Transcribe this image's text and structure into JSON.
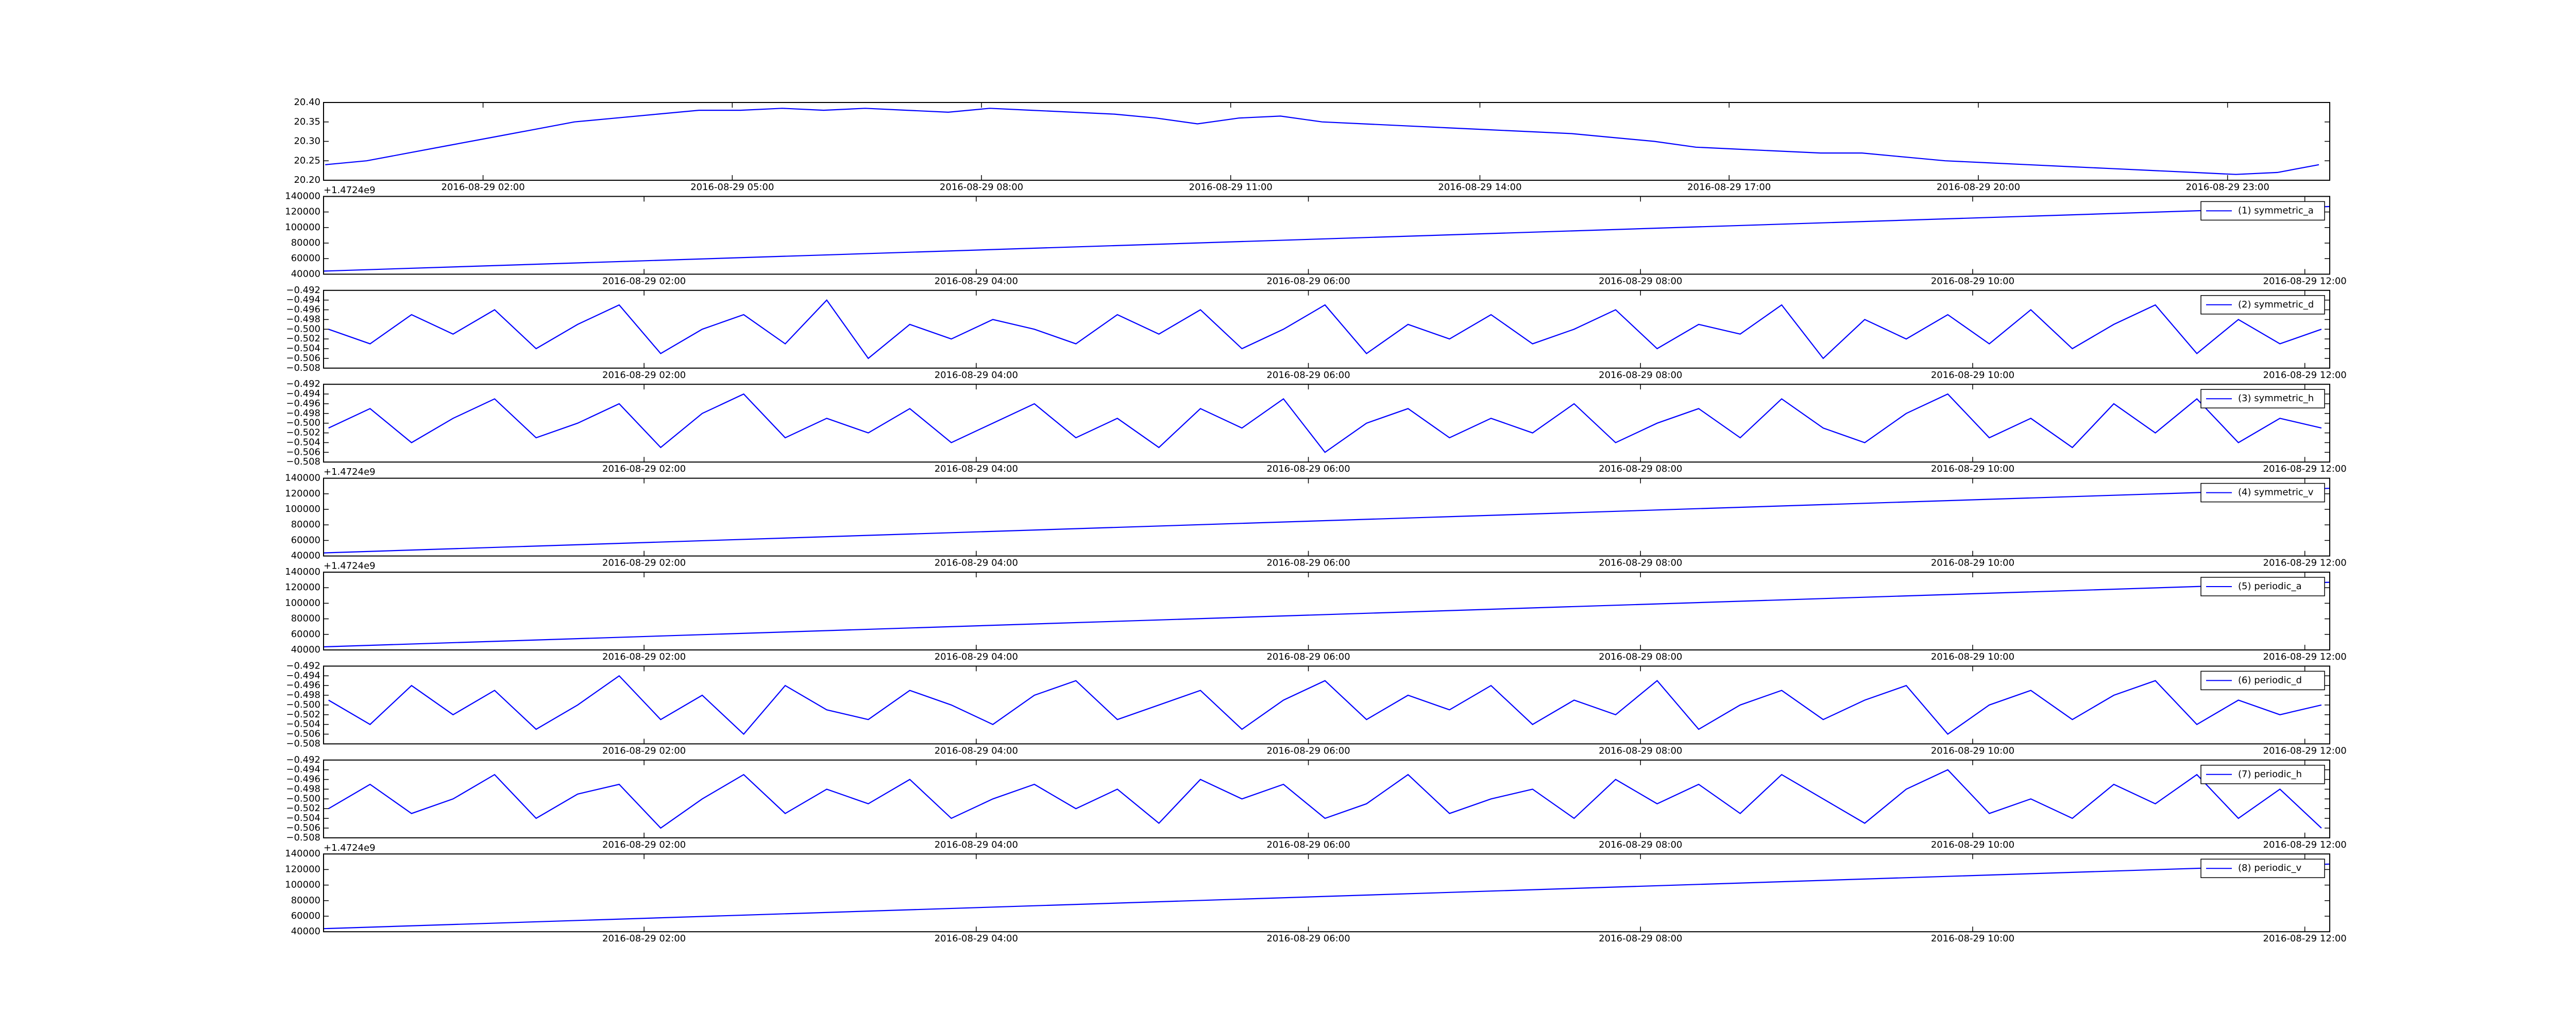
{
  "chart_data": [
    {
      "type": "line",
      "x_offset_text": "+1.4724e9",
      "x": [
        0.1,
        0.6,
        1.1,
        1.6,
        2.1,
        2.6,
        3.1,
        3.6,
        4.1,
        4.6,
        5.1,
        5.6,
        6.1,
        6.6,
        7.1,
        7.6,
        8.1,
        8.6,
        9.1,
        9.6,
        10.1,
        10.6,
        11.1,
        11.6,
        12.1,
        12.6,
        13.1,
        13.6,
        14.1,
        14.6,
        15.1,
        15.6,
        16.1,
        16.6,
        17.1,
        17.6,
        18.1,
        18.6,
        19.1,
        19.6,
        20.1,
        20.6,
        21.1,
        21.6,
        22.1,
        22.6,
        23.1,
        23.6,
        24.1
      ],
      "values": [
        20.24,
        20.25,
        20.27,
        20.29,
        20.31,
        20.33,
        20.35,
        20.36,
        20.37,
        20.38,
        20.38,
        20.385,
        20.38,
        20.385,
        20.38,
        20.375,
        20.385,
        20.38,
        20.375,
        20.37,
        20.36,
        20.345,
        20.36,
        20.365,
        20.35,
        20.345,
        20.34,
        20.335,
        20.33,
        20.325,
        20.32,
        20.31,
        20.3,
        20.285,
        20.28,
        20.275,
        20.27,
        20.27,
        20.26,
        20.25,
        20.245,
        20.24,
        20.235,
        20.23,
        20.225,
        20.22,
        20.215,
        20.22,
        20.24
      ],
      "color": "#0000ff",
      "xlim": [
        0.08,
        24.23
      ],
      "ylim": [
        20.2,
        20.4
      ],
      "xticks": [
        {
          "value": 2,
          "label": "2016-08-29 02:00"
        },
        {
          "value": 5,
          "label": "2016-08-29 05:00"
        },
        {
          "value": 8,
          "label": "2016-08-29 08:00"
        },
        {
          "value": 11,
          "label": "2016-08-29 11:00"
        },
        {
          "value": 14,
          "label": "2016-08-29 14:00"
        },
        {
          "value": 17,
          "label": "2016-08-29 17:00"
        },
        {
          "value": 20,
          "label": "2016-08-29 20:00"
        },
        {
          "value": 23,
          "label": "2016-08-29 23:00"
        }
      ],
      "yticks": [
        {
          "value": 20.2,
          "label": "20.20"
        },
        20.25,
        {
          "value": 20.3,
          "label": "20.30"
        },
        20.35,
        {
          "value": 20.4,
          "label": "20.40"
        }
      ]
    },
    {
      "type": "line",
      "x": [
        0.07,
        12.15
      ],
      "series": [
        {
          "name": "(1) symmetric_a",
          "color": "#0000ff",
          "values": [
            44000,
            127000
          ]
        }
      ],
      "xlim": [
        0.07,
        12.15
      ],
      "ylim": [
        40000,
        140000
      ],
      "xticks": [
        {
          "value": 2,
          "label": "2016-08-29 02:00"
        },
        {
          "value": 4,
          "label": "2016-08-29 04:00"
        },
        {
          "value": 6,
          "label": "2016-08-29 06:00"
        },
        {
          "value": 8,
          "label": "2016-08-29 08:00"
        },
        {
          "value": 10,
          "label": "2016-08-29 10:00"
        },
        {
          "value": 12,
          "label": "2016-08-29 12:00"
        }
      ],
      "yticks": [
        40000,
        60000,
        80000,
        100000,
        120000,
        140000
      ]
    },
    {
      "type": "line",
      "x": [
        0.1,
        0.35,
        0.6,
        0.85,
        1.1,
        1.35,
        1.6,
        1.85,
        2.1,
        2.35,
        2.6,
        2.85,
        3.1,
        3.35,
        3.6,
        3.85,
        4.1,
        4.35,
        4.6,
        4.85,
        5.1,
        5.35,
        5.6,
        5.85,
        6.1,
        6.35,
        6.6,
        6.85,
        7.1,
        7.35,
        7.6,
        7.85,
        8.1,
        8.35,
        8.6,
        8.85,
        9.1,
        9.35,
        9.6,
        9.85,
        10.1,
        10.35,
        10.6,
        10.85,
        11.1,
        11.35,
        11.6,
        11.85,
        12.1
      ],
      "series": [
        {
          "name": "(2) symmetric_d",
          "color": "#0000ff",
          "values": [
            -0.5,
            -0.503,
            -0.497,
            -0.501,
            -0.496,
            -0.504,
            -0.499,
            -0.495,
            -0.505,
            -0.5,
            -0.497,
            -0.503,
            -0.494,
            -0.506,
            -0.499,
            -0.502,
            -0.498,
            -0.5,
            -0.503,
            -0.497,
            -0.501,
            -0.496,
            -0.504,
            -0.5,
            -0.495,
            -0.505,
            -0.499,
            -0.502,
            -0.497,
            -0.503,
            -0.5,
            -0.496,
            -0.504,
            -0.499,
            -0.501,
            -0.495,
            -0.506,
            -0.498,
            -0.502,
            -0.497,
            -0.503,
            -0.496,
            -0.504,
            -0.499,
            -0.495,
            -0.505,
            -0.498,
            -0.503,
            -0.5
          ]
        }
      ],
      "xlim": [
        0.07,
        12.15
      ],
      "ylim": [
        -0.508,
        -0.492
      ],
      "xticks": [
        {
          "value": 2,
          "label": "2016-08-29 02:00"
        },
        {
          "value": 4,
          "label": "2016-08-29 04:00"
        },
        {
          "value": 6,
          "label": "2016-08-29 06:00"
        },
        {
          "value": 8,
          "label": "2016-08-29 08:00"
        },
        {
          "value": 10,
          "label": "2016-08-29 10:00"
        },
        {
          "value": 12,
          "label": "2016-08-29 12:00"
        }
      ],
      "yticks": [
        {
          "value": -0.508,
          "label": "−0.508"
        },
        {
          "value": -0.506,
          "label": "−0.506"
        },
        {
          "value": -0.504,
          "label": "−0.504"
        },
        {
          "value": -0.502,
          "label": "−0.502"
        },
        {
          "value": -0.5,
          "label": "−0.500"
        },
        {
          "value": -0.498,
          "label": "−0.498"
        },
        {
          "value": -0.496,
          "label": "−0.496"
        },
        {
          "value": -0.494,
          "label": "−0.494"
        },
        {
          "value": -0.492,
          "label": "−0.492"
        }
      ]
    },
    {
      "type": "line",
      "x_offset_text": "+1.4724e9",
      "x": [
        0.1,
        0.35,
        0.6,
        0.85,
        1.1,
        1.35,
        1.6,
        1.85,
        2.1,
        2.35,
        2.6,
        2.85,
        3.1,
        3.35,
        3.6,
        3.85,
        4.1,
        4.35,
        4.6,
        4.85,
        5.1,
        5.35,
        5.6,
        5.85,
        6.1,
        6.35,
        6.6,
        6.85,
        7.1,
        7.35,
        7.6,
        7.85,
        8.1,
        8.35,
        8.6,
        8.85,
        9.1,
        9.35,
        9.6,
        9.85,
        10.1,
        10.35,
        10.6,
        10.85,
        11.1,
        11.35,
        11.6,
        11.85,
        12.1
      ],
      "series": [
        {
          "name": "(3) symmetric_h",
          "color": "#0000ff",
          "values": [
            -0.501,
            -0.497,
            -0.504,
            -0.499,
            -0.495,
            -0.503,
            -0.5,
            -0.496,
            -0.505,
            -0.498,
            -0.494,
            -0.503,
            -0.499,
            -0.502,
            -0.497,
            -0.504,
            -0.5,
            -0.496,
            -0.503,
            -0.499,
            -0.505,
            -0.497,
            -0.501,
            -0.495,
            -0.506,
            -0.5,
            -0.497,
            -0.503,
            -0.499,
            -0.502,
            -0.496,
            -0.504,
            -0.5,
            -0.497,
            -0.503,
            -0.495,
            -0.501,
            -0.504,
            -0.498,
            -0.494,
            -0.503,
            -0.499,
            -0.505,
            -0.496,
            -0.502,
            -0.495,
            -0.504,
            -0.499,
            -0.501
          ]
        }
      ],
      "xlim": [
        0.07,
        12.15
      ],
      "ylim": [
        -0.508,
        -0.492
      ],
      "xticks": [
        {
          "value": 2,
          "label": "2016-08-29 02:00"
        },
        {
          "value": 4,
          "label": "2016-08-29 04:00"
        },
        {
          "value": 6,
          "label": "2016-08-29 06:00"
        },
        {
          "value": 8,
          "label": "2016-08-29 08:00"
        },
        {
          "value": 10,
          "label": "2016-08-29 10:00"
        },
        {
          "value": 12,
          "label": "2016-08-29 12:00"
        }
      ],
      "yticks": [
        {
          "value": -0.508,
          "label": "−0.508"
        },
        {
          "value": -0.506,
          "label": "−0.506"
        },
        {
          "value": -0.504,
          "label": "−0.504"
        },
        {
          "value": -0.502,
          "label": "−0.502"
        },
        {
          "value": -0.5,
          "label": "−0.500"
        },
        {
          "value": -0.498,
          "label": "−0.498"
        },
        {
          "value": -0.496,
          "label": "−0.496"
        },
        {
          "value": -0.494,
          "label": "−0.494"
        },
        {
          "value": -0.492,
          "label": "−0.492"
        }
      ]
    },
    {
      "type": "line",
      "x_offset_text": "+1.4724e9",
      "x": [
        0.07,
        12.15
      ],
      "series": [
        {
          "name": "(4) symmetric_v",
          "color": "#0000ff",
          "values": [
            44000,
            127000
          ]
        }
      ],
      "xlim": [
        0.07,
        12.15
      ],
      "ylim": [
        40000,
        140000
      ],
      "xticks": [
        {
          "value": 2,
          "label": "2016-08-29 02:00"
        },
        {
          "value": 4,
          "label": "2016-08-29 04:00"
        },
        {
          "value": 6,
          "label": "2016-08-29 06:00"
        },
        {
          "value": 8,
          "label": "2016-08-29 08:00"
        },
        {
          "value": 10,
          "label": "2016-08-29 10:00"
        },
        {
          "value": 12,
          "label": "2016-08-29 12:00"
        }
      ],
      "yticks": [
        40000,
        60000,
        80000,
        100000,
        120000,
        140000
      ]
    },
    {
      "type": "line",
      "x": [
        0.07,
        12.15
      ],
      "series": [
        {
          "name": "(5) periodic_a",
          "color": "#0000ff",
          "values": [
            44000,
            127000
          ]
        }
      ],
      "xlim": [
        0.07,
        12.15
      ],
      "ylim": [
        40000,
        140000
      ],
      "xticks": [
        {
          "value": 2,
          "label": "2016-08-29 02:00"
        },
        {
          "value": 4,
          "label": "2016-08-29 04:00"
        },
        {
          "value": 6,
          "label": "2016-08-29 06:00"
        },
        {
          "value": 8,
          "label": "2016-08-29 08:00"
        },
        {
          "value": 10,
          "label": "2016-08-29 10:00"
        },
        {
          "value": 12,
          "label": "2016-08-29 12:00"
        }
      ],
      "yticks": [
        40000,
        60000,
        80000,
        100000,
        120000,
        140000
      ]
    },
    {
      "type": "line",
      "x": [
        0.1,
        0.35,
        0.6,
        0.85,
        1.1,
        1.35,
        1.6,
        1.85,
        2.1,
        2.35,
        2.6,
        2.85,
        3.1,
        3.35,
        3.6,
        3.85,
        4.1,
        4.35,
        4.6,
        4.85,
        5.1,
        5.35,
        5.6,
        5.85,
        6.1,
        6.35,
        6.6,
        6.85,
        7.1,
        7.35,
        7.6,
        7.85,
        8.1,
        8.35,
        8.6,
        8.85,
        9.1,
        9.35,
        9.6,
        9.85,
        10.1,
        10.35,
        10.6,
        10.85,
        11.1,
        11.35,
        11.6,
        11.85,
        12.1
      ],
      "series": [
        {
          "name": "(6) periodic_d",
          "color": "#0000ff",
          "values": [
            -0.499,
            -0.504,
            -0.496,
            -0.502,
            -0.497,
            -0.505,
            -0.5,
            -0.494,
            -0.503,
            -0.498,
            -0.506,
            -0.496,
            -0.501,
            -0.503,
            -0.497,
            -0.5,
            -0.504,
            -0.498,
            -0.495,
            -0.503,
            -0.5,
            -0.497,
            -0.505,
            -0.499,
            -0.495,
            -0.503,
            -0.498,
            -0.501,
            -0.496,
            -0.504,
            -0.499,
            -0.502,
            -0.495,
            -0.505,
            -0.5,
            -0.497,
            -0.503,
            -0.499,
            -0.496,
            -0.506,
            -0.5,
            -0.497,
            -0.503,
            -0.498,
            -0.495,
            -0.504,
            -0.499,
            -0.502,
            -0.5
          ]
        }
      ],
      "xlim": [
        0.07,
        12.15
      ],
      "ylim": [
        -0.508,
        -0.492
      ],
      "xticks": [
        {
          "value": 2,
          "label": "2016-08-29 02:00"
        },
        {
          "value": 4,
          "label": "2016-08-29 04:00"
        },
        {
          "value": 6,
          "label": "2016-08-29 06:00"
        },
        {
          "value": 8,
          "label": "2016-08-29 08:00"
        },
        {
          "value": 10,
          "label": "2016-08-29 10:00"
        },
        {
          "value": 12,
          "label": "2016-08-29 12:00"
        }
      ],
      "yticks": [
        {
          "value": -0.508,
          "label": "−0.508"
        },
        {
          "value": -0.506,
          "label": "−0.506"
        },
        {
          "value": -0.504,
          "label": "−0.504"
        },
        {
          "value": -0.502,
          "label": "−0.502"
        },
        {
          "value": -0.5,
          "label": "−0.500"
        },
        {
          "value": -0.498,
          "label": "−0.498"
        },
        {
          "value": -0.496,
          "label": "−0.496"
        },
        {
          "value": -0.494,
          "label": "−0.494"
        },
        {
          "value": -0.492,
          "label": "−0.492"
        }
      ]
    },
    {
      "type": "line",
      "x_offset_text": "+1.4724e9",
      "x": [
        0.1,
        0.35,
        0.6,
        0.85,
        1.1,
        1.35,
        1.6,
        1.85,
        2.1,
        2.35,
        2.6,
        2.85,
        3.1,
        3.35,
        3.6,
        3.85,
        4.1,
        4.35,
        4.6,
        4.85,
        5.1,
        5.35,
        5.6,
        5.85,
        6.1,
        6.35,
        6.6,
        6.85,
        7.1,
        7.35,
        7.6,
        7.85,
        8.1,
        8.35,
        8.6,
        8.85,
        9.1,
        9.35,
        9.6,
        9.85,
        10.1,
        10.35,
        10.6,
        10.85,
        11.1,
        11.35,
        11.6,
        11.85,
        12.1
      ],
      "series": [
        {
          "name": "(7) periodic_h",
          "color": "#0000ff",
          "values": [
            -0.502,
            -0.497,
            -0.503,
            -0.5,
            -0.495,
            -0.504,
            -0.499,
            -0.497,
            -0.506,
            -0.5,
            -0.495,
            -0.503,
            -0.498,
            -0.501,
            -0.496,
            -0.504,
            -0.5,
            -0.497,
            -0.502,
            -0.498,
            -0.505,
            -0.496,
            -0.5,
            -0.497,
            -0.504,
            -0.501,
            -0.495,
            -0.503,
            -0.5,
            -0.498,
            -0.504,
            -0.496,
            -0.501,
            -0.497,
            -0.503,
            -0.495,
            -0.5,
            -0.505,
            -0.498,
            -0.494,
            -0.503,
            -0.5,
            -0.504,
            -0.497,
            -0.501,
            -0.495,
            -0.504,
            -0.498,
            -0.506
          ]
        }
      ],
      "xlim": [
        0.07,
        12.15
      ],
      "ylim": [
        -0.508,
        -0.492
      ],
      "xticks": [
        {
          "value": 2,
          "label": "2016-08-29 02:00"
        },
        {
          "value": 4,
          "label": "2016-08-29 04:00"
        },
        {
          "value": 6,
          "label": "2016-08-29 06:00"
        },
        {
          "value": 8,
          "label": "2016-08-29 08:00"
        },
        {
          "value": 10,
          "label": "2016-08-29 10:00"
        },
        {
          "value": 12,
          "label": "2016-08-29 12:00"
        }
      ],
      "yticks": [
        {
          "value": -0.508,
          "label": "−0.508"
        },
        {
          "value": -0.506,
          "label": "−0.506"
        },
        {
          "value": -0.504,
          "label": "−0.504"
        },
        {
          "value": -0.502,
          "label": "−0.502"
        },
        {
          "value": -0.5,
          "label": "−0.500"
        },
        {
          "value": -0.498,
          "label": "−0.498"
        },
        {
          "value": -0.496,
          "label": "−0.496"
        },
        {
          "value": -0.494,
          "label": "−0.494"
        },
        {
          "value": -0.492,
          "label": "−0.492"
        }
      ]
    },
    {
      "type": "line",
      "x": [
        0.07,
        12.15
      ],
      "series": [
        {
          "name": "(8) periodic_v",
          "color": "#0000ff",
          "values": [
            44000,
            127000
          ]
        }
      ],
      "xlim": [
        0.07,
        12.15
      ],
      "ylim": [
        40000,
        140000
      ],
      "xticks": [
        {
          "value": 2,
          "label": "2016-08-29 02:00"
        },
        {
          "value": 4,
          "label": "2016-08-29 04:00"
        },
        {
          "value": 6,
          "label": "2016-08-29 06:00"
        },
        {
          "value": 8,
          "label": "2016-08-29 08:00"
        },
        {
          "value": 10,
          "label": "2016-08-29 10:00"
        },
        {
          "value": 12,
          "label": "2016-08-29 12:00"
        }
      ],
      "yticks": [
        40000,
        60000,
        80000,
        100000,
        120000,
        140000
      ]
    }
  ]
}
